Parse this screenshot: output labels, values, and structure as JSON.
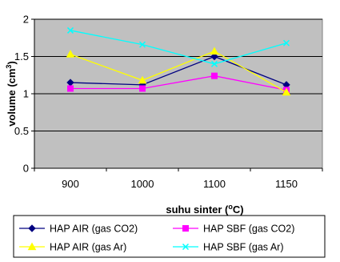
{
  "chart_data": {
    "type": "line",
    "categories": [
      "900",
      "1000",
      "1100",
      "1150"
    ],
    "ylim": [
      0,
      2
    ],
    "yticks": [
      "0",
      "0.5",
      "1",
      "1.5",
      "2"
    ],
    "grid": true,
    "plot_background": "#c0c0c0",
    "ylabel_parts": {
      "main": "volume (cm",
      "sup": "3",
      "end": ")"
    },
    "xlabel_parts": {
      "main": "suhu sinter (",
      "sup": "o",
      "end": "C)"
    },
    "legend_position": "bottom",
    "series": [
      {
        "name": "HAP AIR (gas CO2)",
        "values": [
          1.15,
          1.12,
          1.5,
          1.12
        ],
        "color": "#000080",
        "marker": "diamond"
      },
      {
        "name": "HAP SBF (gas CO2)",
        "values": [
          1.07,
          1.07,
          1.24,
          1.05
        ],
        "color": "#ff00ff",
        "marker": "square"
      },
      {
        "name": "HAP AIR (gas Ar)",
        "values": [
          1.53,
          1.18,
          1.57,
          1.02
        ],
        "color": "#ffff00",
        "marker": "triangle"
      },
      {
        "name": "HAP SBF (gas Ar)",
        "values": [
          1.85,
          1.66,
          1.4,
          1.68
        ],
        "color": "#00ffff",
        "marker": "x"
      }
    ]
  }
}
